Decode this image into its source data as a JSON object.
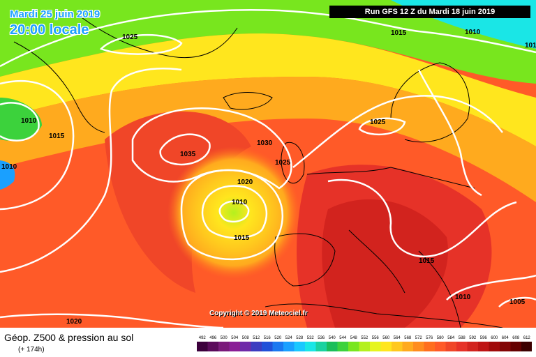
{
  "header": {
    "date": "Mardi 25 juin 2019",
    "time": "20:00 locale",
    "run": "Run GFS 12 Z du Mardi 18 juin 2019"
  },
  "copyright": "Copyright © 2019 Meteociel.fr",
  "legend": {
    "title": "Géop. Z500 & pression au sol",
    "subtitle": "(+ 174h)",
    "scale": [
      {
        "v": "492",
        "c": "#3c003c"
      },
      {
        "v": "496",
        "c": "#5a0a5a"
      },
      {
        "v": "500",
        "c": "#7a1a7a"
      },
      {
        "v": "504",
        "c": "#8a1e96"
      },
      {
        "v": "508",
        "c": "#6e2aa8"
      },
      {
        "v": "512",
        "c": "#3c3cc0"
      },
      {
        "v": "516",
        "c": "#2050d8"
      },
      {
        "v": "520",
        "c": "#1a78f0"
      },
      {
        "v": "524",
        "c": "#1aa0ff"
      },
      {
        "v": "528",
        "c": "#1ac8ff"
      },
      {
        "v": "532",
        "c": "#1ae6e6"
      },
      {
        "v": "536",
        "c": "#1ad2a0"
      },
      {
        "v": "540",
        "c": "#1abe5a"
      },
      {
        "v": "544",
        "c": "#3cd23c"
      },
      {
        "v": "548",
        "c": "#78e61e"
      },
      {
        "v": "552",
        "c": "#b4f01e"
      },
      {
        "v": "556",
        "c": "#e6f51e"
      },
      {
        "v": "560",
        "c": "#ffe61e"
      },
      {
        "v": "564",
        "c": "#ffc81e"
      },
      {
        "v": "568",
        "c": "#ffaa1e"
      },
      {
        "v": "572",
        "c": "#ff8c1e"
      },
      {
        "v": "576",
        "c": "#ff6e1e"
      },
      {
        "v": "580",
        "c": "#ff5a28"
      },
      {
        "v": "584",
        "c": "#f04628"
      },
      {
        "v": "588",
        "c": "#e63228"
      },
      {
        "v": "592",
        "c": "#d2231e"
      },
      {
        "v": "596",
        "c": "#be1414"
      },
      {
        "v": "600",
        "c": "#a00a0a"
      },
      {
        "v": "604",
        "c": "#820505"
      },
      {
        "v": "608",
        "c": "#640000"
      },
      {
        "v": "612",
        "c": "#3c0000"
      }
    ]
  },
  "isobar_labels": [
    {
      "id": "l1",
      "text": "1025"
    },
    {
      "id": "l2",
      "text": "1015"
    },
    {
      "id": "l3",
      "text": "1010"
    },
    {
      "id": "l4",
      "text": "1010"
    },
    {
      "id": "l5",
      "text": "1015"
    },
    {
      "id": "l6",
      "text": "1010"
    },
    {
      "id": "l7",
      "text": "1035"
    },
    {
      "id": "l8",
      "text": "1030"
    },
    {
      "id": "l9",
      "text": "1025"
    },
    {
      "id": "l10",
      "text": "1025"
    },
    {
      "id": "l11",
      "text": "1020"
    },
    {
      "id": "l12",
      "text": "1010"
    },
    {
      "id": "l13",
      "text": "1015"
    },
    {
      "id": "l14",
      "text": "1015"
    },
    {
      "id": "l15",
      "text": "1010"
    },
    {
      "id": "l16",
      "text": "1005"
    },
    {
      "id": "l17",
      "text": "1020"
    },
    {
      "id": "l18",
      "text": "101"
    }
  ],
  "colors": {
    "high": "#be1414",
    "mid": "#ff8c1e",
    "low": "#78e61e",
    "isobar": "#ffffff"
  }
}
